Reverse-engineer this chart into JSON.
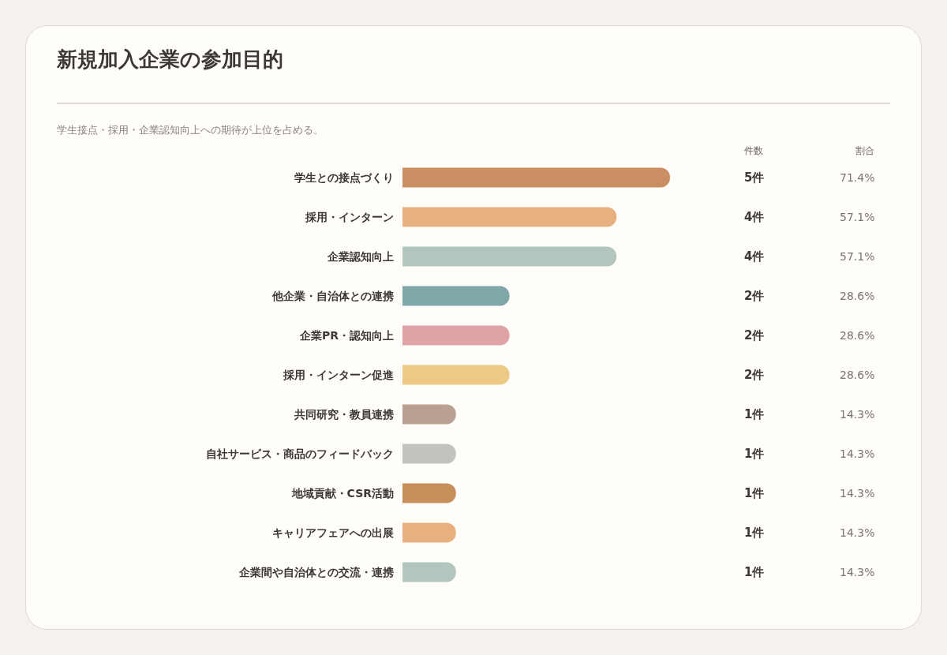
{
  "chart_data": {
    "type": "bar",
    "orientation": "horizontal",
    "title": "新規加入企業の参加目的",
    "subtitle": "学生接点・採用・企業認知向上への期待が上位を占める。",
    "categories": [
      "学生との接点づくり",
      "採用・インターン",
      "企業認知向上",
      "他企業・自治体との連携",
      "企業PR・認知向上",
      "採用・インターン促進",
      "共同研究・教員連携",
      "自社サービス・商品のフィードバック",
      "地域貢献・CSR活動",
      "キャリアフェアへの出展",
      "企業間や自治体との交流・連携"
    ],
    "values": [
      5,
      4,
      4,
      2,
      2,
      2,
      1,
      1,
      1,
      1,
      1
    ],
    "colors": [
      "#c98f63",
      "#e8b07e",
      "#b2c6be",
      "#7fa7a8",
      "#dfa3a6",
      "#ecc985",
      "#b9a093",
      "#c4c2be",
      "#c78f5a",
      "#e8b07e",
      "#b2c6be"
    ],
    "value_labels": [
      "5件",
      "4件",
      "4件",
      "2件",
      "2件",
      "2件",
      "1件",
      "1件",
      "1件",
      "1件",
      "1件"
    ],
    "annotations": [
      "件数",
      "割合",
      "71.4%",
      "57.1%",
      "57.1%",
      "28.6%",
      "28.6%",
      "28.6%",
      "14.3%",
      "14.3%",
      "14.3%",
      "14.3%",
      "14.3%"
    ],
    "grid": false,
    "legend": false
  }
}
